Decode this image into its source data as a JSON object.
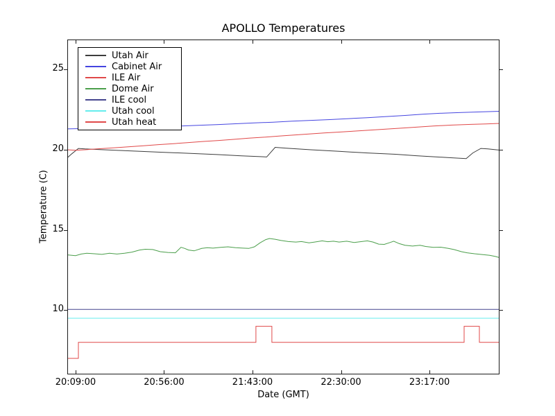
{
  "chart_data": {
    "type": "line",
    "title": "APOLLO Temperatures",
    "xlabel": "Date (GMT)",
    "ylabel": "Temperature (C)",
    "x_unit": "minutes after 20:09:00 GMT",
    "xlim": [
      -4.4,
      225.2
    ],
    "ylim": [
      6.0,
      26.87
    ],
    "grid": false,
    "legend_position": "upper left",
    "x_ticks": [
      {
        "t": 0,
        "label": "20:09:00"
      },
      {
        "t": 47,
        "label": "20:56:00"
      },
      {
        "t": 94,
        "label": "21:43:00"
      },
      {
        "t": 141,
        "label": "22:30:00"
      },
      {
        "t": 188,
        "label": "23:17:00"
      }
    ],
    "y_ticks": [
      {
        "v": 10,
        "label": "10"
      },
      {
        "v": 15,
        "label": "15"
      },
      {
        "v": 20,
        "label": "20"
      },
      {
        "v": 25,
        "label": "25"
      }
    ],
    "series": [
      {
        "name": "Utah Air",
        "color": "#3c3c3c",
        "points": [
          [
            -4.4,
            19.5
          ],
          [
            -2,
            19.75
          ],
          [
            1.5,
            20.08
          ],
          [
            5,
            20.05
          ],
          [
            15,
            20.0
          ],
          [
            30,
            19.92
          ],
          [
            45,
            19.85
          ],
          [
            60,
            19.78
          ],
          [
            75,
            19.7
          ],
          [
            88,
            19.62
          ],
          [
            98,
            19.57
          ],
          [
            101.5,
            19.55
          ],
          [
            106,
            20.15
          ],
          [
            112,
            20.1
          ],
          [
            125,
            20.0
          ],
          [
            140,
            19.9
          ],
          [
            155,
            19.8
          ],
          [
            170,
            19.72
          ],
          [
            181,
            19.63
          ],
          [
            192,
            19.55
          ],
          [
            200,
            19.5
          ],
          [
            207.5,
            19.45
          ],
          [
            211,
            19.8
          ],
          [
            215.3,
            20.08
          ],
          [
            219,
            20.05
          ],
          [
            225.2,
            19.98
          ]
        ]
      },
      {
        "name": "Cabinet Air",
        "color": "#4444e0",
        "points": [
          [
            -4.4,
            21.3
          ],
          [
            5,
            21.32
          ],
          [
            15,
            21.35
          ],
          [
            25,
            21.38
          ],
          [
            35,
            21.42
          ],
          [
            45,
            21.45
          ],
          [
            56,
            21.48
          ],
          [
            65,
            21.52
          ],
          [
            75,
            21.57
          ],
          [
            85,
            21.62
          ],
          [
            95,
            21.67
          ],
          [
            105,
            21.72
          ],
          [
            115,
            21.78
          ],
          [
            125,
            21.83
          ],
          [
            135,
            21.88
          ],
          [
            145,
            21.94
          ],
          [
            155,
            22.0
          ],
          [
            165,
            22.07
          ],
          [
            175,
            22.14
          ],
          [
            185,
            22.22
          ],
          [
            195,
            22.28
          ],
          [
            205,
            22.32
          ],
          [
            215,
            22.36
          ],
          [
            225.2,
            22.4
          ]
        ]
      },
      {
        "name": "ILE Air",
        "color": "#e04848",
        "points": [
          [
            -4.4,
            20.0
          ],
          [
            0,
            19.97
          ],
          [
            5,
            20.0
          ],
          [
            12,
            20.06
          ],
          [
            20,
            20.12
          ],
          [
            28,
            20.18
          ],
          [
            36,
            20.25
          ],
          [
            44,
            20.32
          ],
          [
            52,
            20.38
          ],
          [
            60,
            20.45
          ],
          [
            68,
            20.52
          ],
          [
            76,
            20.58
          ],
          [
            84,
            20.65
          ],
          [
            92,
            20.72
          ],
          [
            100,
            20.78
          ],
          [
            108,
            20.85
          ],
          [
            116,
            20.92
          ],
          [
            124,
            20.98
          ],
          [
            132,
            21.05
          ],
          [
            140,
            21.1
          ],
          [
            148,
            21.16
          ],
          [
            156,
            21.22
          ],
          [
            164,
            21.28
          ],
          [
            172,
            21.34
          ],
          [
            181,
            21.41
          ],
          [
            190,
            21.48
          ],
          [
            200,
            21.54
          ],
          [
            210,
            21.58
          ],
          [
            218,
            21.61
          ],
          [
            225.2,
            21.64
          ]
        ]
      },
      {
        "name": "Dome Air",
        "color": "#4a9e4a",
        "points": [
          [
            -4.4,
            13.45
          ],
          [
            0,
            13.4
          ],
          [
            3,
            13.5
          ],
          [
            6,
            13.55
          ],
          [
            10,
            13.52
          ],
          [
            14,
            13.48
          ],
          [
            18,
            13.55
          ],
          [
            22,
            13.5
          ],
          [
            26,
            13.55
          ],
          [
            30,
            13.62
          ],
          [
            34,
            13.75
          ],
          [
            37,
            13.8
          ],
          [
            41,
            13.78
          ],
          [
            45,
            13.65
          ],
          [
            49,
            13.6
          ],
          [
            53,
            13.58
          ],
          [
            56,
            13.92
          ],
          [
            58,
            13.85
          ],
          [
            60,
            13.75
          ],
          [
            63,
            13.7
          ],
          [
            67,
            13.85
          ],
          [
            70,
            13.9
          ],
          [
            73,
            13.87
          ],
          [
            77,
            13.92
          ],
          [
            81,
            13.95
          ],
          [
            85,
            13.9
          ],
          [
            89,
            13.87
          ],
          [
            92,
            13.85
          ],
          [
            95,
            13.95
          ],
          [
            98,
            14.2
          ],
          [
            101,
            14.4
          ],
          [
            103,
            14.47
          ],
          [
            106,
            14.42
          ],
          [
            109,
            14.35
          ],
          [
            113,
            14.28
          ],
          [
            117,
            14.25
          ],
          [
            120,
            14.28
          ],
          [
            124,
            14.2
          ],
          [
            127,
            14.25
          ],
          [
            131,
            14.32
          ],
          [
            134,
            14.27
          ],
          [
            137,
            14.3
          ],
          [
            140,
            14.25
          ],
          [
            144,
            14.3
          ],
          [
            148,
            14.22
          ],
          [
            152,
            14.28
          ],
          [
            155,
            14.32
          ],
          [
            158,
            14.25
          ],
          [
            161,
            14.12
          ],
          [
            164,
            14.1
          ],
          [
            167,
            14.22
          ],
          [
            169,
            14.3
          ],
          [
            172,
            14.15
          ],
          [
            175,
            14.05
          ],
          [
            179,
            14.0
          ],
          [
            183,
            14.05
          ],
          [
            186,
            13.97
          ],
          [
            190,
            13.92
          ],
          [
            194,
            13.93
          ],
          [
            198,
            13.85
          ],
          [
            201,
            13.78
          ],
          [
            205,
            13.65
          ],
          [
            208,
            13.58
          ],
          [
            212,
            13.52
          ],
          [
            216,
            13.47
          ],
          [
            220,
            13.42
          ],
          [
            223,
            13.35
          ],
          [
            225.2,
            13.28
          ]
        ]
      },
      {
        "name": "ILE cool",
        "color": "#44448e",
        "points": [
          [
            -4.4,
            10.05
          ],
          [
            225.2,
            10.05
          ]
        ]
      },
      {
        "name": "Utah cool",
        "color": "#63eded",
        "points": [
          [
            -4.4,
            9.5
          ],
          [
            225.2,
            9.5
          ]
        ]
      },
      {
        "name": "Utah heat",
        "color": "#e04848",
        "points": [
          [
            -4.4,
            7.0
          ],
          [
            1.5,
            7.0
          ],
          [
            1.5,
            8.0
          ],
          [
            95.8,
            8.0
          ],
          [
            95.8,
            9.0
          ],
          [
            104.3,
            9.0
          ],
          [
            104.3,
            8.0
          ],
          [
            206.4,
            8.0
          ],
          [
            206.4,
            9.0
          ],
          [
            214.5,
            9.0
          ],
          [
            214.5,
            8.0
          ],
          [
            225.2,
            8.0
          ]
        ]
      }
    ]
  }
}
